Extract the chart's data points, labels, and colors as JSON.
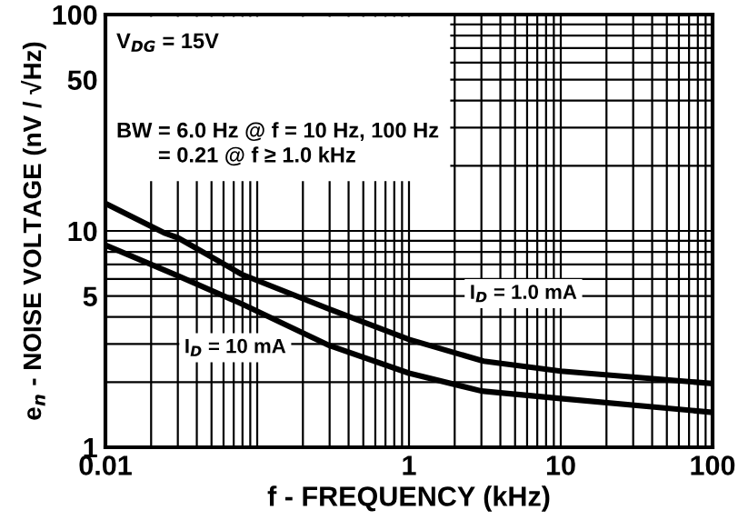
{
  "chart_data": {
    "type": "line",
    "xlabel": "f - FREQUENCY (kHz)",
    "ylabel": "e$_{n}$ - NOISE VOLTAGE (nV / √Hz)",
    "log": "xy",
    "xlim": [
      0.01,
      100
    ],
    "ylim": [
      1,
      100
    ],
    "xticks": [
      0.01,
      {
        "value": 0.02,
        "label": null
      },
      {
        "value": 0.03,
        "label": null
      },
      {
        "value": 0.04,
        "label": null
      },
      {
        "value": 0.05,
        "label": null
      },
      {
        "value": 0.06,
        "label": null
      },
      {
        "value": 0.07,
        "label": null
      },
      {
        "value": 0.08,
        "label": null
      },
      {
        "value": 0.09,
        "label": null
      },
      {
        "value": 0.1,
        "label": null
      },
      {
        "value": 0.2,
        "label": null
      },
      {
        "value": 0.3,
        "label": null
      },
      {
        "value": 0.4,
        "label": null
      },
      {
        "value": 0.5,
        "label": null
      },
      {
        "value": 0.6,
        "label": null
      },
      {
        "value": 0.7,
        "label": null
      },
      {
        "value": 0.8,
        "label": null
      },
      {
        "value": 0.9,
        "label": null
      },
      1,
      {
        "value": 2,
        "label": null
      },
      {
        "value": 3,
        "label": null
      },
      {
        "value": 4,
        "label": null
      },
      {
        "value": 5,
        "label": null
      },
      {
        "value": 6,
        "label": null
      },
      {
        "value": 7,
        "label": null
      },
      {
        "value": 8,
        "label": null
      },
      {
        "value": 9,
        "label": null
      },
      10,
      {
        "value": 20,
        "label": null
      },
      {
        "value": 30,
        "label": null
      },
      {
        "value": 40,
        "label": null
      },
      {
        "value": 50,
        "label": null
      },
      {
        "value": 60,
        "label": null
      },
      {
        "value": 70,
        "label": null
      },
      {
        "value": 80,
        "label": null
      },
      {
        "value": 90,
        "label": null
      },
      100
    ],
    "yticks": [
      1,
      {
        "value": 2,
        "label": null
      },
      {
        "value": 3,
        "label": null
      },
      {
        "value": 4,
        "label": null
      },
      5,
      {
        "value": 6,
        "label": null
      },
      {
        "value": 7,
        "label": null
      },
      {
        "value": 8,
        "label": null
      },
      {
        "value": 9,
        "label": null
      },
      10,
      {
        "value": 20,
        "label": null
      },
      {
        "value": 30,
        "label": null
      },
      {
        "value": 40,
        "label": null
      },
      50,
      {
        "value": 60,
        "label": null
      },
      {
        "value": 70,
        "label": null
      },
      {
        "value": 80,
        "label": null
      },
      {
        "value": 90,
        "label": null
      },
      100
    ],
    "grid": true,
    "legend": false,
    "series": [
      {
        "name": "I$_{D}$ = 1.0 mA",
        "color": "#000000",
        "x": [
          0.01,
          0.0243,
          0.03,
          0.079,
          0.3,
          1,
          3.1,
          10,
          100
        ],
        "values": [
          13.4,
          9.8,
          9.3,
          6.3,
          4.35,
          3.15,
          2.5,
          2.25,
          1.97
        ]
      },
      {
        "name": "I$_{D}$ = 10 mA",
        "color": "#000000",
        "x": [
          0.01,
          0.03,
          0.079,
          0.3,
          1,
          3,
          10,
          100
        ],
        "values": [
          8.6,
          6.2,
          4.6,
          2.95,
          2.2,
          1.82,
          1.68,
          1.45
        ]
      }
    ],
    "annotations": [
      "V$_{DG}$ = 15V",
      "BW = 6.0 Hz @ f = 10 Hz, 100 Hz\n       = 0.21 @ f ≥ 1.0 kHz"
    ]
  }
}
